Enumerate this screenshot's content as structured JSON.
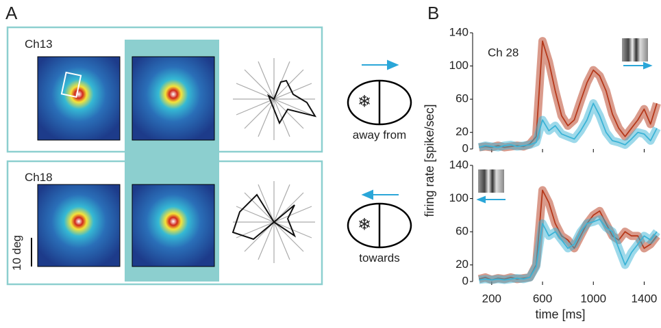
{
  "panel_a": {
    "letter": "A",
    "channels": [
      "Ch13",
      "Ch18"
    ],
    "scale_label": "10 deg",
    "directions": [
      "away from",
      "towards"
    ]
  },
  "panel_b_letter": "B",
  "y_axis_label": "firing rate [spike/sec]",
  "chart_data": [
    {
      "type": "line",
      "annotation": "Ch 28",
      "x": [
        100,
        150,
        200,
        250,
        300,
        350,
        400,
        450,
        500,
        550,
        600,
        650,
        700,
        750,
        800,
        850,
        900,
        950,
        1000,
        1050,
        1100,
        1150,
        1200,
        1250,
        1300,
        1350,
        1400,
        1450,
        1500
      ],
      "xlim": [
        50,
        1500
      ],
      "xticks": [
        200,
        600,
        1000,
        1400
      ],
      "ylim": [
        0,
        140
      ],
      "yticks": [
        0,
        20,
        60,
        100,
        140
      ],
      "series": [
        {
          "color": "#b5381a",
          "values": [
            2,
            3,
            2,
            4,
            2,
            3,
            4,
            3,
            6,
            15,
            130,
            105,
            70,
            40,
            28,
            35,
            58,
            80,
            95,
            88,
            70,
            42,
            25,
            15,
            25,
            35,
            48,
            30,
            55
          ]
        },
        {
          "color": "#3bb3d6",
          "values": [
            2,
            4,
            3,
            2,
            4,
            5,
            3,
            4,
            5,
            8,
            35,
            22,
            28,
            18,
            15,
            12,
            22,
            35,
            55,
            40,
            20,
            10,
            8,
            5,
            12,
            20,
            18,
            10,
            25
          ]
        }
      ]
    },
    {
      "type": "line",
      "x_label": "time [ms]",
      "x": [
        100,
        150,
        200,
        250,
        300,
        350,
        400,
        450,
        500,
        550,
        600,
        650,
        700,
        750,
        800,
        850,
        900,
        950,
        1000,
        1050,
        1100,
        1150,
        1200,
        1250,
        1300,
        1350,
        1400,
        1450,
        1500
      ],
      "xlim": [
        50,
        1500
      ],
      "xticks": [
        200,
        600,
        1000,
        1400
      ],
      "ylim": [
        0,
        140
      ],
      "yticks": [
        0,
        20,
        60,
        100,
        140
      ],
      "series": [
        {
          "color": "#b5381a",
          "values": [
            3,
            5,
            2,
            4,
            3,
            5,
            3,
            4,
            5,
            20,
            110,
            95,
            70,
            55,
            50,
            40,
            55,
            70,
            80,
            85,
            70,
            55,
            50,
            60,
            55,
            55,
            40,
            45,
            55
          ]
        },
        {
          "color": "#3bb3d6",
          "values": [
            2,
            3,
            2,
            3,
            2,
            3,
            4,
            3,
            5,
            18,
            70,
            55,
            60,
            50,
            40,
            45,
            60,
            70,
            72,
            75,
            65,
            60,
            40,
            20,
            35,
            45,
            55,
            50,
            60
          ]
        }
      ]
    }
  ]
}
